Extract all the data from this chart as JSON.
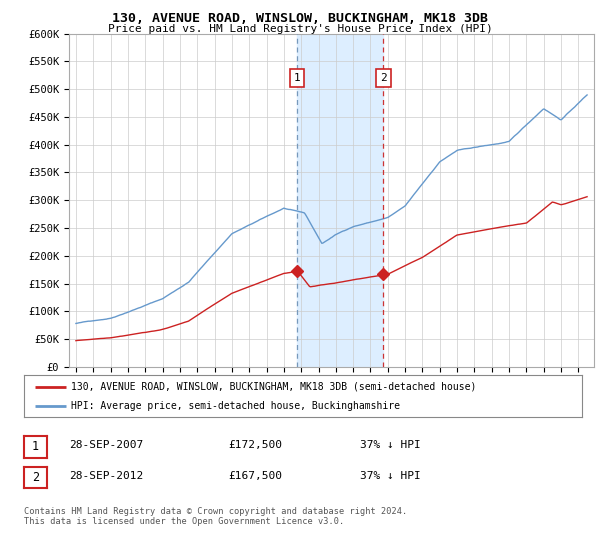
{
  "title": "130, AVENUE ROAD, WINSLOW, BUCKINGHAM, MK18 3DB",
  "subtitle": "Price paid vs. HM Land Registry's House Price Index (HPI)",
  "ylabel_ticks": [
    "£0",
    "£50K",
    "£100K",
    "£150K",
    "£200K",
    "£250K",
    "£300K",
    "£350K",
    "£400K",
    "£450K",
    "£500K",
    "£550K",
    "£600K"
  ],
  "ytick_values": [
    0,
    50000,
    100000,
    150000,
    200000,
    250000,
    300000,
    350000,
    400000,
    450000,
    500000,
    550000,
    600000
  ],
  "ylim": [
    0,
    600000
  ],
  "hpi_color": "#6699cc",
  "price_color": "#cc2222",
  "marker_color": "#cc2222",
  "shade_color": "#ddeeff",
  "transaction1_year": 2007.75,
  "transaction2_year": 2012.75,
  "transaction1_price": 172500,
  "transaction2_price": 167500,
  "legend_house_label": "130, AVENUE ROAD, WINSLOW, BUCKINGHAM, MK18 3DB (semi-detached house)",
  "legend_hpi_label": "HPI: Average price, semi-detached house, Buckinghamshire",
  "table_rows": [
    [
      "1",
      "28-SEP-2007",
      "£172,500",
      "37% ↓ HPI"
    ],
    [
      "2",
      "28-SEP-2012",
      "£167,500",
      "37% ↓ HPI"
    ]
  ],
  "footer": "Contains HM Land Registry data © Crown copyright and database right 2024.\nThis data is licensed under the Open Government Licence v3.0.",
  "background_color": "#ffffff",
  "grid_color": "#cccccc"
}
